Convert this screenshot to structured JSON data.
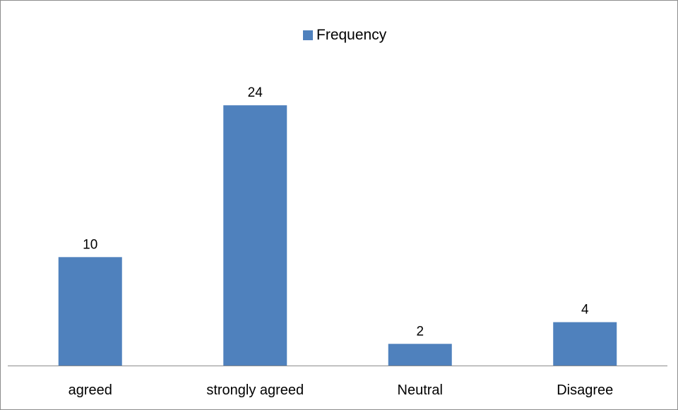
{
  "chart_data": {
    "type": "bar",
    "categories": [
      "agreed",
      "strongly agreed",
      "Neutral",
      "Disagree"
    ],
    "series": [
      {
        "name": "Frequency",
        "values": [
          10,
          24,
          2,
          4
        ]
      }
    ],
    "title": "",
    "xlabel": "",
    "ylabel": "",
    "ylim": [
      0,
      30
    ],
    "grid": false,
    "legend_position": "top-center",
    "colors": {
      "bar": "#4f81bd",
      "axis": "#8c8c8c"
    }
  }
}
